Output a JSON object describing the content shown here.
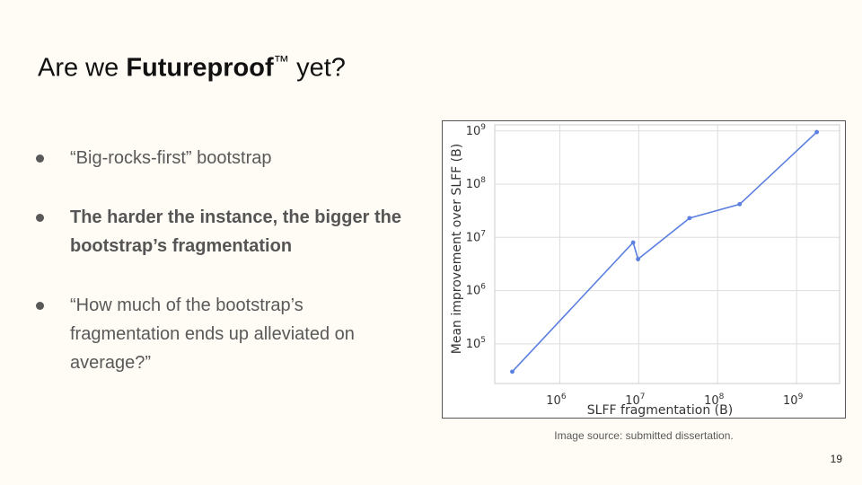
{
  "slide": {
    "title_pre": "Are we ",
    "title_bold": "Futureproof",
    "title_tm": "™",
    "title_post": " yet?",
    "bullets": [
      {
        "text": "“Big-rocks-first” bootstrap",
        "bold": false
      },
      {
        "text": "The harder the instance, the bigger the bootstrap’s fragmentation",
        "bold": true
      },
      {
        "text": "“How much of the bootstrap’s fragmentation ends up alleviated on average?”",
        "bold": false
      }
    ],
    "caption": "Image source: submitted dissertation.",
    "page_number": "19"
  },
  "chart_data": {
    "type": "line",
    "xlabel": "SLFF fragmentation (B)",
    "ylabel": "Mean improvement over SLFF (B)",
    "xscale": "log",
    "yscale": "log",
    "xlim": [
      150000,
      3500000000
    ],
    "ylim": [
      18000,
      1300000000
    ],
    "x_ticks": [
      {
        "value": 1000000,
        "base": "10",
        "exp": "6"
      },
      {
        "value": 10000000,
        "base": "10",
        "exp": "7"
      },
      {
        "value": 100000000,
        "base": "10",
        "exp": "8"
      },
      {
        "value": 1000000000,
        "base": "10",
        "exp": "9"
      }
    ],
    "y_ticks": [
      {
        "value": 100000,
        "base": "10",
        "exp": "5"
      },
      {
        "value": 1000000,
        "base": "10",
        "exp": "6"
      },
      {
        "value": 10000000,
        "base": "10",
        "exp": "7"
      },
      {
        "value": 100000000,
        "base": "10",
        "exp": "8"
      },
      {
        "value": 1000000000,
        "base": "10",
        "exp": "9"
      }
    ],
    "grid": true,
    "color": "#5b7fe0",
    "series": [
      {
        "x": [
          250000,
          8500000,
          9800000,
          44000000,
          190000000,
          1800000000
        ],
        "y": [
          30000,
          8000000,
          3900000,
          23000000,
          42000000,
          950000000
        ]
      }
    ]
  }
}
